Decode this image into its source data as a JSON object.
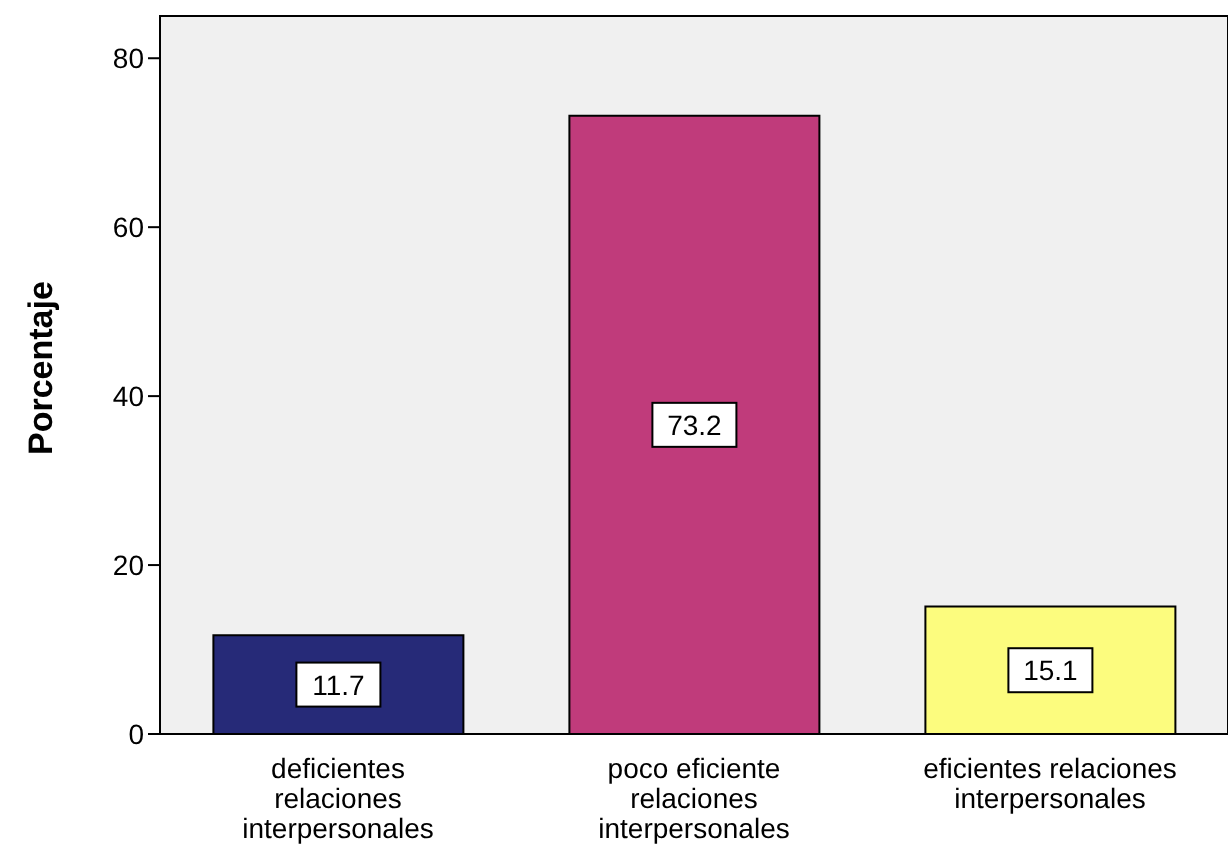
{
  "chart_data": {
    "type": "bar",
    "ylabel": "Porcentaje",
    "categories": [
      "deficientes relaciones interpersonales",
      "poco eficiente relaciones interpersonales",
      "eficientes relaciones interpersonales"
    ],
    "values": [
      11.7,
      73.2,
      15.1
    ],
    "colors": [
      "#262a78",
      "#c03b7b",
      "#fcfc7e"
    ],
    "ylim": [
      0,
      85
    ],
    "yticks": [
      0,
      20,
      40,
      60,
      80
    ],
    "data_labels": true
  }
}
